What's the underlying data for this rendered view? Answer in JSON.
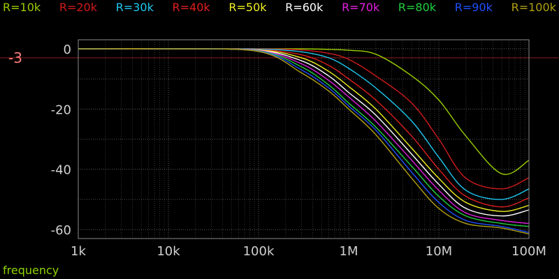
{
  "chart_data": {
    "type": "line",
    "xscale": "log",
    "xlim": [
      1000,
      100000000
    ],
    "ylim": [
      -63,
      3
    ],
    "x_ticks": [
      1000,
      10000,
      100000,
      1000000,
      10000000,
      100000000
    ],
    "x_tick_labels": [
      "1k",
      "10k",
      "100k",
      "1M",
      "10M",
      "100M"
    ],
    "y_ticks": [
      0,
      -20,
      -40,
      -60
    ],
    "y_tick_labels": [
      "0",
      "-20",
      "-40",
      "-60"
    ],
    "xlabel": "frequency",
    "ylabel": "",
    "grid": true,
    "legend_position": "top",
    "reference_line": {
      "y": -3,
      "label": "-3",
      "color": "#8a1e1e",
      "label_color": "#ff7f7f"
    },
    "colors": {
      "background": "#000000",
      "axis_text": "#d0d0d0",
      "xlabel": "#8fd400",
      "grid": "#6e6e6e"
    },
    "x": [
      1000,
      10000,
      100000,
      300000,
      600000,
      1000000,
      2000000,
      5000000,
      10000000,
      20000000,
      50000000,
      100000000
    ],
    "series": [
      {
        "name": "R=10k",
        "color": "#9acd00",
        "values": [
          0,
          0,
          0,
          0,
          -0.2,
          -0.5,
          -1.8,
          -9,
          -17,
          -29,
          -41.5,
          -37
        ]
      },
      {
        "name": "R=20k",
        "color": "#d01a1a",
        "values": [
          0,
          0,
          0,
          -0.4,
          -1.5,
          -3.5,
          -9,
          -18,
          -30,
          -43,
          -46.5,
          -42.8
        ]
      },
      {
        "name": "R=30k",
        "color": "#1ec8f0",
        "values": [
          0,
          0,
          -0.1,
          -1,
          -3,
          -6.5,
          -13,
          -24,
          -36,
          -47,
          -50,
          -46.5
        ]
      },
      {
        "name": "R=40k",
        "color": "#e01e1e",
        "values": [
          0,
          0,
          -0.3,
          -2,
          -5.5,
          -10,
          -17,
          -29,
          -40,
          -49,
          -52.5,
          -49.5
        ]
      },
      {
        "name": "R=50k",
        "color": "#f0f020",
        "values": [
          0,
          0,
          -0.4,
          -3,
          -7.5,
          -12.5,
          -20,
          -33,
          -43,
          -51,
          -54,
          -52
        ]
      },
      {
        "name": "R=60k",
        "color": "#ffffff",
        "values": [
          0,
          0,
          -0.5,
          -4,
          -9,
          -14.5,
          -22,
          -35,
          -45,
          -53,
          -55.5,
          -53.5
        ]
      },
      {
        "name": "R=70k",
        "color": "#e020e0",
        "values": [
          0,
          0,
          -0.6,
          -5,
          -10.5,
          -16,
          -24,
          -37,
          -47,
          -54.5,
          -57,
          -58
        ]
      },
      {
        "name": "R=80k",
        "color": "#20d040",
        "values": [
          0,
          0,
          -0.7,
          -6,
          -12,
          -18,
          -26,
          -39,
          -49,
          -55.5,
          -58,
          -59
        ]
      },
      {
        "name": "R=90k",
        "color": "#2050ff",
        "values": [
          0,
          0,
          -0.8,
          -7,
          -13,
          -19,
          -27,
          -41,
          -51,
          -57,
          -59,
          -61
        ]
      },
      {
        "name": "R=100k",
        "color": "#b0a010",
        "values": [
          0,
          0,
          -0.9,
          -8,
          -14,
          -20,
          -28.5,
          -43,
          -53,
          -58,
          -59.5,
          -61.5
        ]
      }
    ]
  }
}
